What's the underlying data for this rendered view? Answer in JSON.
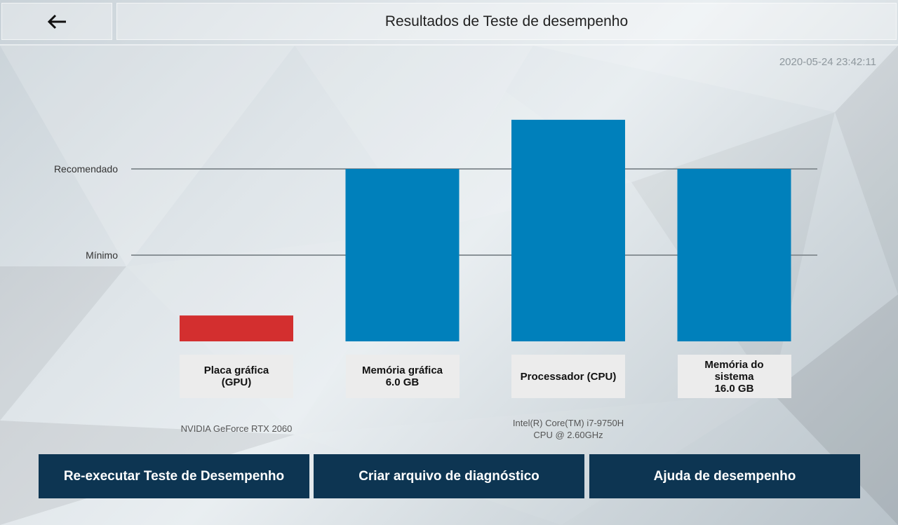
{
  "header": {
    "back_icon": "arrow-left-icon",
    "title": "Resultados de Teste de desempenho"
  },
  "timestamp": "2020-05-24 23:42:11",
  "chart_data": {
    "type": "bar",
    "levels": [
      {
        "name": "Mínimo",
        "value": 1
      },
      {
        "name": "Recomendado",
        "value": 2
      }
    ],
    "ylim": [
      0,
      3.1
    ],
    "categories": [
      {
        "label_lines": [
          "Placa gráfica",
          "(GPU)"
        ],
        "value": 0.3,
        "color": "#d32f2f",
        "device_lines": [
          "NVIDIA GeForce RTX 2060"
        ]
      },
      {
        "label_lines": [
          "Memória gráfica",
          "6.0 GB"
        ],
        "value": 2.0,
        "color": "#0080bb",
        "device_lines": []
      },
      {
        "label_lines": [
          "Processador (CPU)"
        ],
        "value": 2.57,
        "color": "#0080bb",
        "device_lines": [
          "Intel(R) Core(TM) i7-9750H",
          "CPU @ 2.60GHz"
        ]
      },
      {
        "label_lines": [
          "Memória do",
          "sistema",
          "16.0 GB"
        ],
        "value": 2.0,
        "color": "#0080bb",
        "device_lines": []
      }
    ]
  },
  "buttons": {
    "rerun": "Re-executar Teste de Desempenho",
    "diagnostic": "Criar arquivo de diagnóstico",
    "help": "Ajuda de desempenho"
  },
  "colors": {
    "button_bg": "#0d3552",
    "bar_fail": "#d32f2f",
    "bar_pass": "#0080bb"
  }
}
